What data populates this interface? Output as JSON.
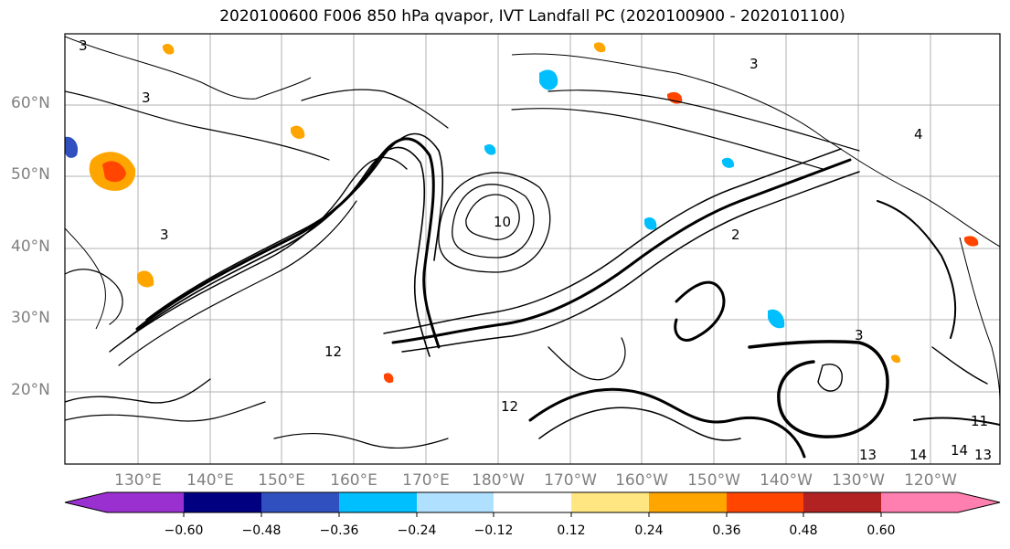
{
  "title": "2020100600 F006 850 hPa qvapor, IVT Landfall PC (2020100900 - 2020101100)",
  "latitude_labels": [
    "60°N",
    "50°N",
    "40°N",
    "30°N",
    "20°N"
  ],
  "longitude_labels": [
    "130°E",
    "140°E",
    "150°E",
    "160°E",
    "170°E",
    "180°W",
    "170°W",
    "160°W",
    "150°W",
    "140°W",
    "130°W",
    "120°W"
  ],
  "colorbar": {
    "tick_labels": [
      "−0.60",
      "−0.48",
      "−0.36",
      "−0.24",
      "−0.12",
      "0.12",
      "0.24",
      "0.36",
      "0.48",
      "0.60"
    ],
    "colors": [
      "#9b30d0",
      "#000080",
      "#3050c0",
      "#00bfff",
      "#b0e0ff",
      "#ffffff",
      "#ffe680",
      "#ffa500",
      "#ff4500",
      "#b22222",
      "#ff80b0"
    ]
  },
  "contour_labels": [
    "3",
    "3",
    "3",
    "3",
    "4",
    "10",
    "12",
    "11",
    "13",
    "14",
    "14",
    "13",
    "3",
    "2",
    "12"
  ]
}
